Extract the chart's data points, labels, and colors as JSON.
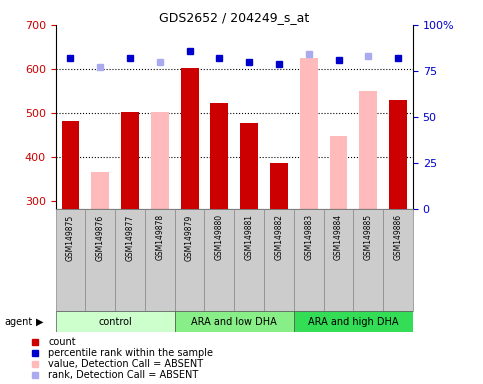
{
  "title": "GDS2652 / 204249_s_at",
  "samples": [
    "GSM149875",
    "GSM149876",
    "GSM149877",
    "GSM149878",
    "GSM149879",
    "GSM149880",
    "GSM149881",
    "GSM149882",
    "GSM149883",
    "GSM149884",
    "GSM149885",
    "GSM149886"
  ],
  "count_values": [
    482,
    null,
    502,
    null,
    603,
    523,
    477,
    385,
    null,
    null,
    null,
    530
  ],
  "absent_bar_values": [
    null,
    365,
    null,
    502,
    null,
    null,
    null,
    null,
    625,
    447,
    550,
    null
  ],
  "percentile_values": [
    82,
    null,
    82,
    null,
    86,
    82,
    80,
    79,
    null,
    81,
    null,
    82
  ],
  "absent_rank_values": [
    null,
    77,
    null,
    80,
    null,
    null,
    null,
    null,
    84,
    null,
    83,
    null
  ],
  "ylim": [
    280,
    700
  ],
  "y2lim": [
    0,
    100
  ],
  "yticks": [
    300,
    400,
    500,
    600,
    700
  ],
  "y2ticks": [
    0,
    25,
    50,
    75,
    100
  ],
  "count_color": "#cc0000",
  "absent_bar_color": "#ffbbbb",
  "percentile_color": "#0000cc",
  "absent_rank_color": "#aaaaee",
  "group_labels": [
    "control",
    "ARA and low DHA",
    "ARA and high DHA"
  ],
  "group_colors": [
    "#ccffcc",
    "#88ee88",
    "#33dd55"
  ],
  "group_ranges": [
    [
      0,
      4
    ],
    [
      4,
      8
    ],
    [
      8,
      12
    ]
  ],
  "grid_dotted_at": [
    400,
    500,
    600
  ],
  "legend_items": [
    {
      "label": "count",
      "color": "#cc0000"
    },
    {
      "label": "percentile rank within the sample",
      "color": "#0000cc"
    },
    {
      "label": "value, Detection Call = ABSENT",
      "color": "#ffbbbb"
    },
    {
      "label": "rank, Detection Call = ABSENT",
      "color": "#aaaaee"
    }
  ]
}
